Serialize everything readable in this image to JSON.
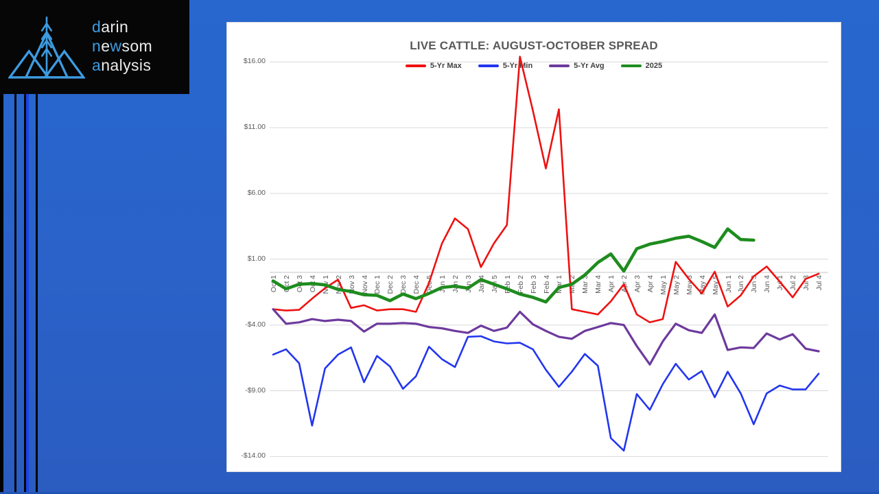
{
  "logo": {
    "lines": [
      {
        "parts": [
          {
            "text": "d",
            "accent": true
          },
          {
            "text": "arin",
            "accent": false
          }
        ]
      },
      {
        "parts": [
          {
            "text": "n",
            "accent": true
          },
          {
            "text": "e",
            "accent": false
          },
          {
            "text": "w",
            "accent": true
          },
          {
            "text": "som",
            "accent": false
          }
        ]
      },
      {
        "parts": [
          {
            "text": "a",
            "accent": true
          },
          {
            "text": "nalysis",
            "accent": false
          }
        ]
      }
    ],
    "accent_color": "#3d9be0"
  },
  "chart_data": {
    "type": "line",
    "title": "LIVE CATTLE: AUGUST-OCTOBER SPREAD",
    "legend_position": "top",
    "grid": "horizontal",
    "zero_axis": true,
    "ylim": [
      -14.5,
      17
    ],
    "yticks": [
      16,
      11,
      6,
      1,
      -4,
      -9,
      -14
    ],
    "ytick_labels": [
      "$16.00",
      "$11.00",
      "$6.00",
      "$1.00",
      "-$4.00",
      "-$9.00",
      "-$14.00"
    ],
    "categories": [
      "Oct 1",
      "Oct 2",
      "Oct 3",
      "Oct 4",
      "Nov 1",
      "Nov 2",
      "Nov 3",
      "Nov 4",
      "Dec 1",
      "Dec 2",
      "Dec 3",
      "Dec 4",
      "Dec 5",
      "Jan 1",
      "Jan 2",
      "Jan 3",
      "Jan 4",
      "Jan 5",
      "Feb 1",
      "Feb 2",
      "Feb 3",
      "Feb 4",
      "Mar 1",
      "Mar 2",
      "Mar 3",
      "Mar 4",
      "Apr 1",
      "Apr 2",
      "Apr 3",
      "Apr 4",
      "May 1",
      "May 2",
      "May 3",
      "May 4",
      "May 5",
      "Jun 1",
      "Jun 2",
      "Jun 3",
      "Jun 4",
      "Jul 1",
      "Jul 2",
      "Jul 3",
      "Jul 4"
    ],
    "series": [
      {
        "name": "5-Yr Max",
        "color": "#ee1111",
        "stroke_width": 2.6,
        "values": [
          -2.8,
          -2.9,
          -2.85,
          -2.0,
          -1.2,
          -0.55,
          -2.7,
          -2.5,
          -2.9,
          -2.8,
          -2.8,
          -3.0,
          -0.8,
          2.2,
          4.1,
          3.3,
          0.4,
          2.2,
          3.6,
          16.4,
          12.3,
          7.9,
          12.4,
          -2.8,
          -3.0,
          -3.2,
          -2.2,
          -0.9,
          -3.2,
          -3.8,
          -3.55,
          0.8,
          -0.5,
          -1.6,
          0.05,
          -2.6,
          -1.75,
          -0.3,
          0.45,
          -0.7,
          -1.9,
          -0.5,
          -0.1
        ]
      },
      {
        "name": "5-Yr Min",
        "color": "#2236ee",
        "stroke_width": 2.6,
        "values": [
          -6.25,
          -5.85,
          -6.9,
          -11.65,
          -7.3,
          -6.25,
          -5.7,
          -8.35,
          -6.35,
          -7.15,
          -8.85,
          -7.9,
          -5.65,
          -6.6,
          -7.2,
          -4.9,
          -4.85,
          -5.25,
          -5.4,
          -5.35,
          -5.85,
          -7.4,
          -8.7,
          -7.55,
          -6.2,
          -7.1,
          -12.6,
          -13.55,
          -9.25,
          -10.45,
          -8.5,
          -6.95,
          -8.15,
          -7.5,
          -9.5,
          -7.55,
          -9.2,
          -11.55,
          -9.2,
          -8.6,
          -8.9,
          -8.9,
          -7.7
        ]
      },
      {
        "name": "5-Yr Avg",
        "color": "#6d3a9d",
        "stroke_width": 3.2,
        "values": [
          -2.8,
          -3.9,
          -3.8,
          -3.55,
          -3.7,
          -3.6,
          -3.7,
          -4.5,
          -3.9,
          -3.9,
          -3.85,
          -3.9,
          -4.15,
          -4.25,
          -4.45,
          -4.6,
          -4.05,
          -4.45,
          -4.2,
          -3.0,
          -3.95,
          -4.45,
          -4.9,
          -5.05,
          -4.45,
          -4.15,
          -3.85,
          -4.0,
          -5.6,
          -7.0,
          -5.25,
          -3.9,
          -4.4,
          -4.6,
          -3.2,
          -5.9,
          -5.7,
          -5.75,
          -4.65,
          -5.1,
          -4.7,
          -5.8,
          -6.0
        ]
      },
      {
        "name": "2025",
        "color": "#1e8c1e",
        "stroke_width": 4.6,
        "values": [
          -0.65,
          -1.25,
          -0.9,
          -0.85,
          -0.95,
          -1.3,
          -1.45,
          -1.7,
          -1.75,
          -2.15,
          -1.65,
          -2.0,
          -1.6,
          -1.15,
          -1.05,
          -1.2,
          -0.55,
          -0.9,
          -1.25,
          -1.65,
          -1.9,
          -2.25,
          -1.15,
          -0.9,
          -0.2,
          0.75,
          1.4,
          0.1,
          1.8,
          2.15,
          2.35,
          2.6,
          2.75,
          2.35,
          1.9,
          3.3,
          2.5,
          2.45,
          null,
          null,
          null,
          null,
          null
        ]
      }
    ]
  }
}
